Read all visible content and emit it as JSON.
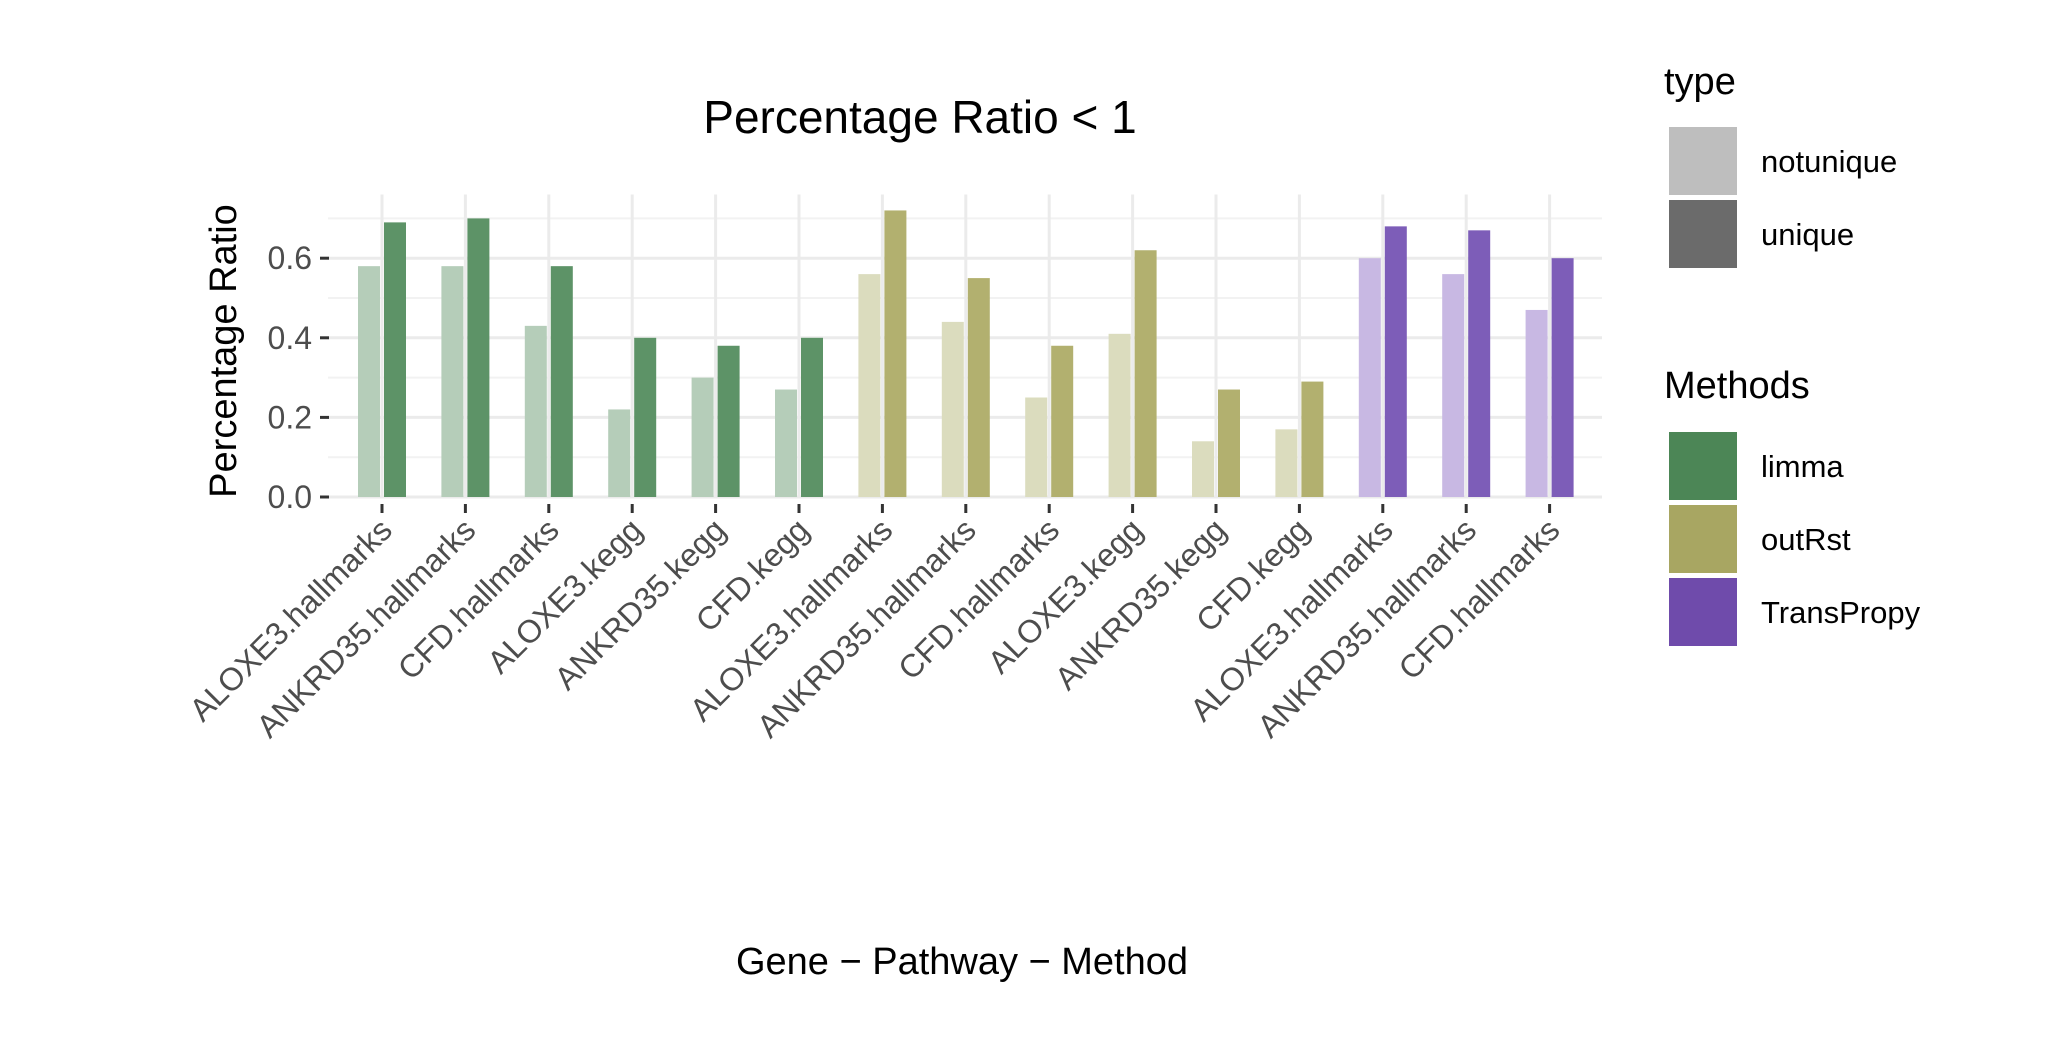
{
  "chart_data": {
    "type": "bar",
    "title": "Percentage Ratio < 1",
    "xlabel": "Gene − Pathway − Method",
    "ylabel": "Percentage Ratio",
    "ylim": [
      0,
      0.76
    ],
    "yticks": [
      "0.0",
      "0.2",
      "0.4",
      "0.6"
    ],
    "ytick_values": [
      0,
      0.2,
      0.4,
      0.6
    ],
    "grid": true,
    "categories": [
      "ALOXE3.hallmarks",
      "ANKRD35.hallmarks",
      "CFD.hallmarks",
      "ALOXE3.kegg",
      "ANKRD35.kegg",
      "CFD.kegg",
      "ALOXE3.hallmarks",
      "ANKRD35.hallmarks",
      "CFD.hallmarks",
      "ALOXE3.kegg",
      "ANKRD35.kegg",
      "CFD.kegg",
      "ALOXE3.hallmarks",
      "ANKRD35.hallmarks",
      "CFD.hallmarks"
    ],
    "category_methods": [
      "limma",
      "limma",
      "limma",
      "limma",
      "limma",
      "limma",
      "outRst",
      "outRst",
      "outRst",
      "outRst",
      "outRst",
      "outRst",
      "TransPropy",
      "TransPropy",
      "TransPropy"
    ],
    "series": [
      {
        "name": "notunique",
        "values": [
          0.58,
          0.58,
          0.43,
          0.22,
          0.3,
          0.27,
          0.56,
          0.44,
          0.25,
          0.41,
          0.14,
          0.17,
          0.6,
          0.56,
          0.47
        ]
      },
      {
        "name": "unique",
        "values": [
          0.69,
          0.7,
          0.58,
          0.4,
          0.38,
          0.4,
          0.72,
          0.55,
          0.38,
          0.62,
          0.27,
          0.29,
          0.68,
          0.67,
          0.6
        ]
      }
    ],
    "legend": {
      "placement": "right",
      "type_title": "type",
      "type_items": [
        {
          "label": "notunique",
          "color": "#bebebe"
        },
        {
          "label": "unique",
          "color": "#6b6b6b"
        }
      ],
      "methods_title": "Methods",
      "methods_items": [
        {
          "label": "limma",
          "color": "#4c8656"
        },
        {
          "label": "outRst",
          "color": "#a8a662"
        },
        {
          "label": "TransPropy",
          "color": "#6f4bab"
        }
      ]
    },
    "colors": {
      "limma": {
        "notunique": "#b5cdb9",
        "unique": "#5d9367"
      },
      "outRst": {
        "notunique": "#dbdcbe",
        "unique": "#b2b06f"
      },
      "TransPropy": {
        "notunique": "#c8b8e3",
        "unique": "#7d5db8"
      }
    }
  }
}
